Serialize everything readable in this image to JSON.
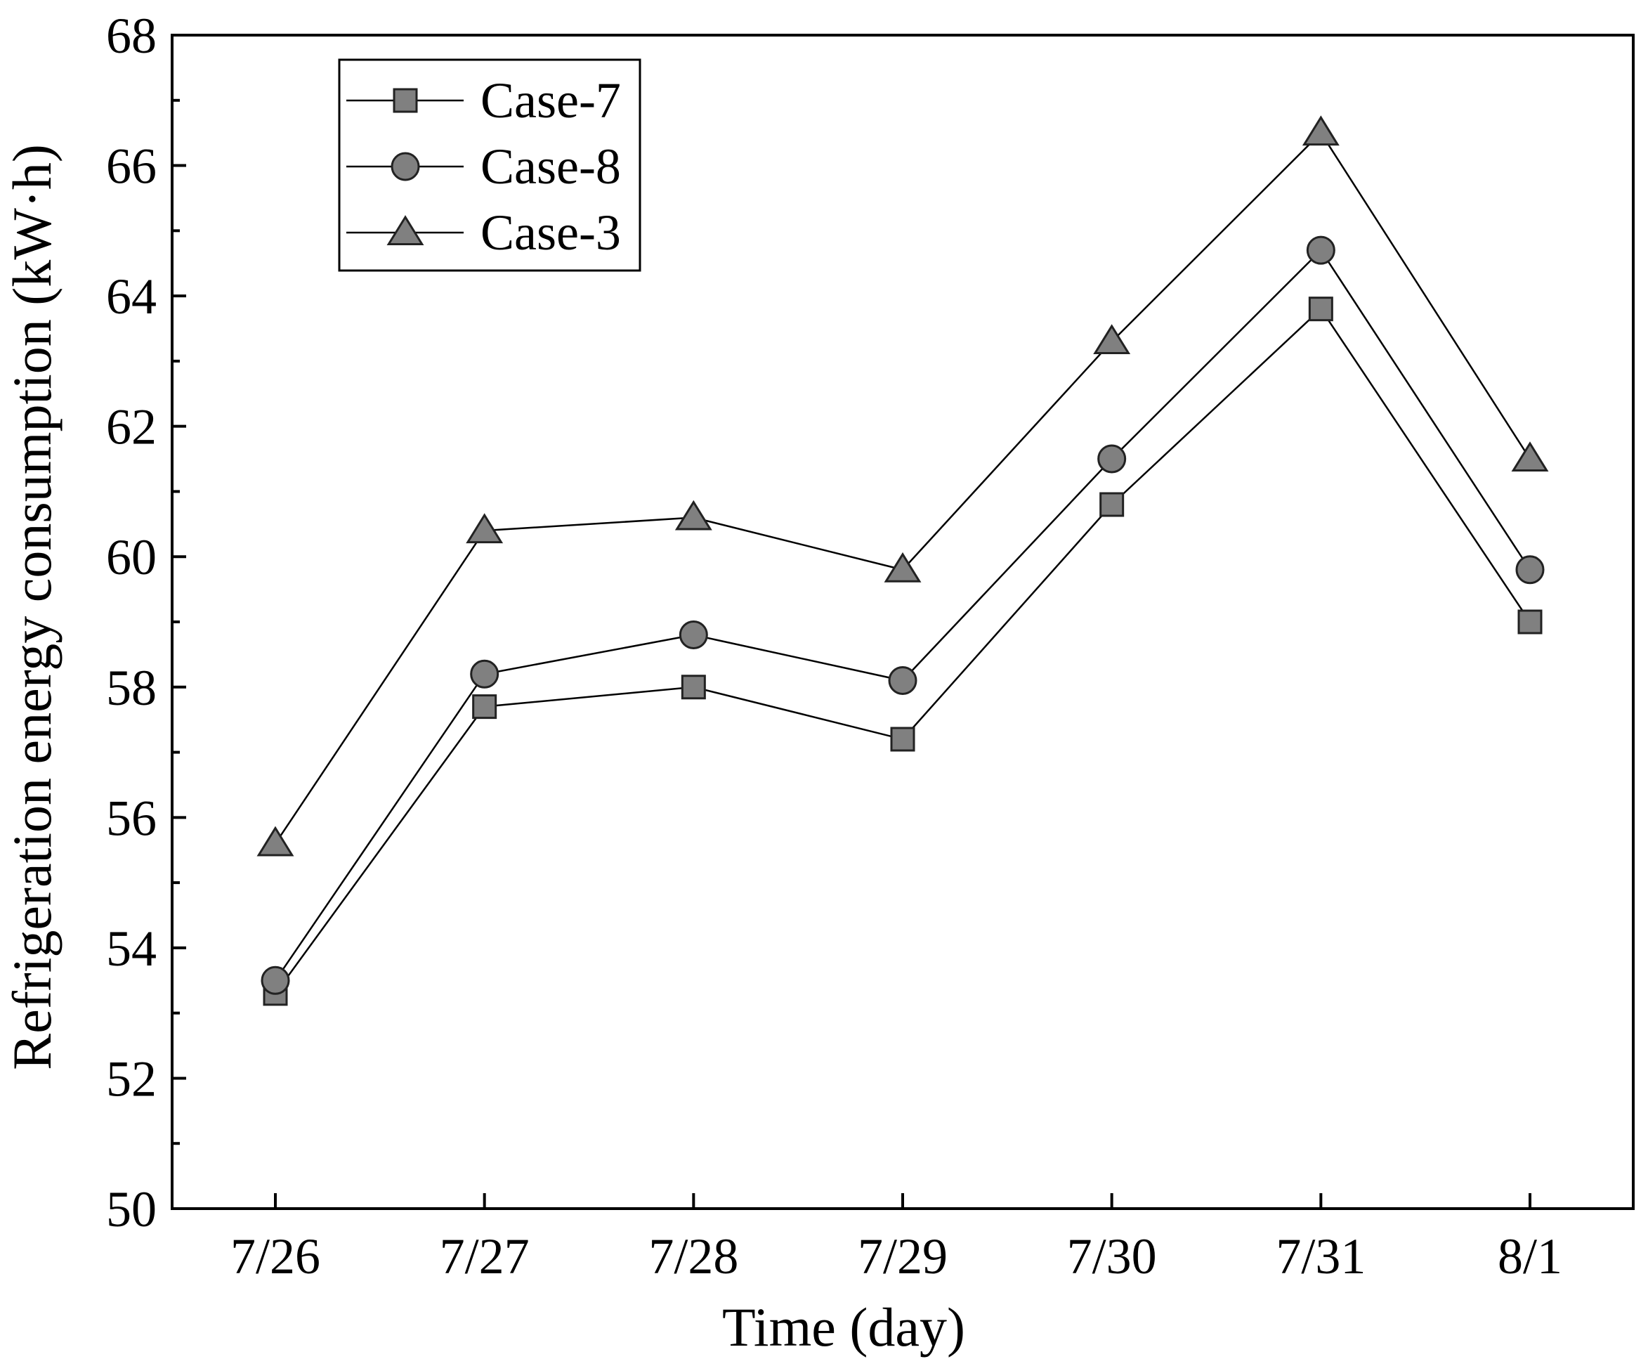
{
  "chart_data": {
    "type": "line",
    "title": "",
    "xlabel": "Time (day)",
    "ylabel": "Refrigeration energy consumption (kW·h)",
    "categories": [
      "7/26",
      "7/27",
      "7/28",
      "7/29",
      "7/30",
      "7/31",
      "8/1"
    ],
    "ylim": [
      50,
      68
    ],
    "yticks": [
      50,
      52,
      54,
      56,
      58,
      60,
      62,
      64,
      66,
      68
    ],
    "series": [
      {
        "name": "Case-7",
        "marker": "square",
        "values": [
          53.3,
          57.7,
          58.0,
          57.2,
          60.8,
          63.8,
          59.0
        ]
      },
      {
        "name": "Case-8",
        "marker": "circle",
        "values": [
          53.5,
          58.2,
          58.8,
          58.1,
          61.5,
          64.7,
          59.8
        ]
      },
      {
        "name": "Case-3",
        "marker": "triangle",
        "values": [
          55.6,
          60.4,
          60.6,
          59.8,
          63.3,
          66.5,
          61.5
        ]
      }
    ],
    "legend_position": "top-left",
    "grid": false,
    "colors": {
      "line": "#000000",
      "marker_fill": "#808080",
      "marker_stroke": "#222222"
    }
  }
}
